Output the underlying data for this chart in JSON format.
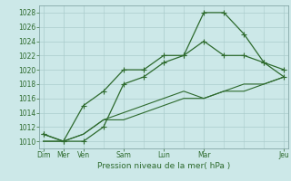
{
  "xlabel": "Pression niveau de la mer( hPa )",
  "bg_color": "#cce8e8",
  "grid_color": "#aacccc",
  "line_color": "#2d6a2d",
  "ylim": [
    1009,
    1029
  ],
  "yticks": [
    1010,
    1012,
    1014,
    1016,
    1018,
    1020,
    1022,
    1024,
    1026,
    1028
  ],
  "xtick_major_positions": [
    0,
    1,
    2,
    4,
    6,
    8,
    12
  ],
  "xtick_major_labels": [
    "Dim",
    "Mer",
    "Ven",
    "Sam",
    "Lun",
    "Mar",
    "Jeu"
  ],
  "num_points": 13,
  "series1_x": [
    0,
    1,
    2,
    3,
    4,
    5,
    6,
    7,
    8,
    9,
    10,
    11,
    12
  ],
  "series1_y": [
    1011,
    1010,
    1010,
    1012,
    1018,
    1019,
    1021,
    1022,
    1028,
    1028,
    1025,
    1021,
    1020
  ],
  "series2_x": [
    0,
    1,
    2,
    3,
    4,
    5,
    6,
    7,
    8,
    9,
    10,
    11,
    12
  ],
  "series2_y": [
    1011,
    1010,
    1015,
    1017,
    1020,
    1020,
    1022,
    1022,
    1024,
    1022,
    1022,
    1021,
    1019
  ],
  "series3_x": [
    0,
    1,
    2,
    3,
    4,
    5,
    6,
    7,
    8,
    9,
    10,
    11,
    12
  ],
  "series3_y": [
    1010,
    1010,
    1011,
    1013,
    1014,
    1015,
    1016,
    1017,
    1016,
    1017,
    1018,
    1018,
    1019
  ],
  "series4_x": [
    0,
    1,
    2,
    3,
    4,
    5,
    6,
    7,
    8,
    9,
    10,
    11,
    12
  ],
  "series4_y": [
    1010,
    1010,
    1011,
    1013,
    1013,
    1014,
    1015,
    1016,
    1016,
    1017,
    1017,
    1018,
    1019
  ],
  "xlim": [
    -0.2,
    12.2
  ]
}
